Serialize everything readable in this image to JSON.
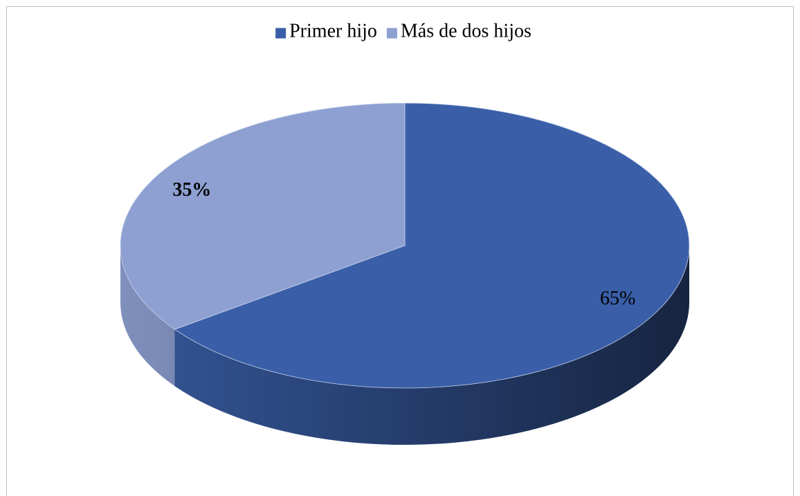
{
  "chart_data": {
    "type": "pie3d",
    "categories": [
      "Primer hijo",
      "Más de dos hijos"
    ],
    "values": [
      65,
      35
    ],
    "value_labels": [
      "65%",
      "35%"
    ],
    "colors": [
      "#3a5fa8",
      "#8ea0d2"
    ],
    "legend": "top"
  }
}
